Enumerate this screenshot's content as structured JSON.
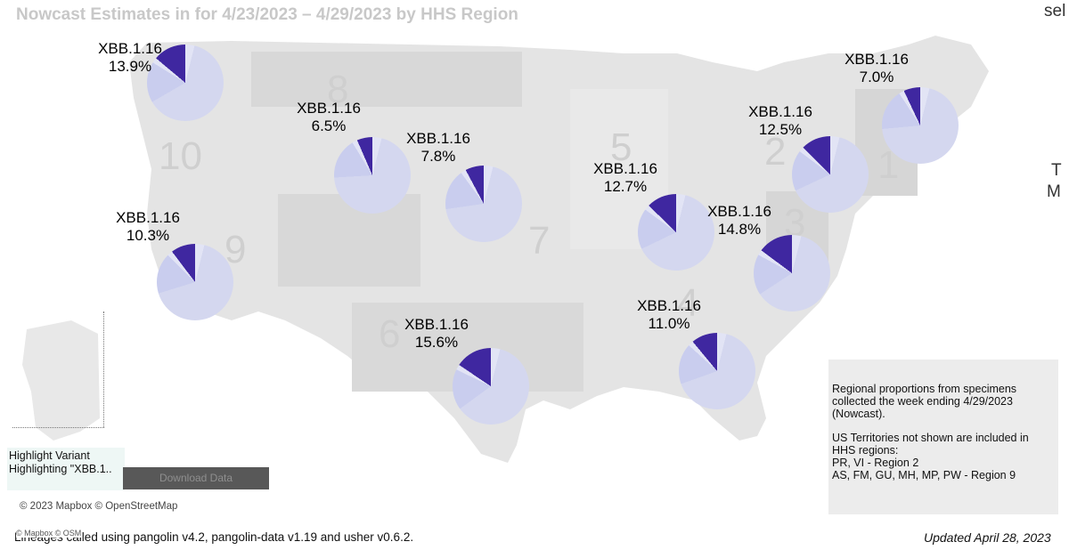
{
  "header": {
    "title": "Nowcast Estimates in for 4/23/2023 – 4/29/2023 by HHS Region",
    "corner_text_top": "sel",
    "corner_text_t": "T",
    "corner_text_m": "M"
  },
  "region_numbers": [
    "10",
    "8",
    "9",
    "7",
    "6",
    "5",
    "4",
    "3",
    "2",
    "1"
  ],
  "pies": [
    {
      "variant": "XBB.1.16",
      "percent_label": "13.9%",
      "share": 0.139
    },
    {
      "variant": "XBB.1.16",
      "percent_label": "6.5%",
      "share": 0.065
    },
    {
      "variant": "XBB.1.16",
      "percent_label": "7.8%",
      "share": 0.078
    },
    {
      "variant": "XBB.1.16",
      "percent_label": "10.3%",
      "share": 0.103
    },
    {
      "variant": "XBB.1.16",
      "percent_label": "15.6%",
      "share": 0.156
    },
    {
      "variant": "XBB.1.16",
      "percent_label": "12.7%",
      "share": 0.127
    },
    {
      "variant": "XBB.1.16",
      "percent_label": "11.0%",
      "share": 0.11
    },
    {
      "variant": "XBB.1.16",
      "percent_label": "14.8%",
      "share": 0.148
    },
    {
      "variant": "XBB.1.16",
      "percent_label": "12.5%",
      "share": 0.125
    },
    {
      "variant": "XBB.1.16",
      "percent_label": "7.0%",
      "share": 0.07
    }
  ],
  "colors": {
    "highlight": "#3f27a0",
    "pie_base": "#d4d7ef",
    "pie_light": "#e2e4f5",
    "pie_mid": "#c9cdee",
    "map_land": "#e4e4e4",
    "map_region_dark": "#d8d8d8"
  },
  "info_box": {
    "paragraph1": [
      "Regional proportions from specimens",
      "collected the week ending 4/29/2023",
      "(Nowcast)."
    ],
    "paragraph2": [
      "US Territories not shown are included in",
      "HHS regions:",
      "PR, VI - Region 2",
      "AS, FM, GU, MH, MP, PW - Region 9"
    ]
  },
  "highlight": {
    "label": "Highlight Variant",
    "value": "Highlighting \"XBB.1.."
  },
  "download_button": {
    "label": "Download Data"
  },
  "attribution": "© 2023 Mapbox © OpenStreetMap",
  "footer": {
    "osm_mark": "© Mapbox © OSM",
    "left": "Lineages called using pangolin v4.2, pangolin-data v1.19 and usher v0.6.2.",
    "right": "Updated April 28, 2023"
  }
}
